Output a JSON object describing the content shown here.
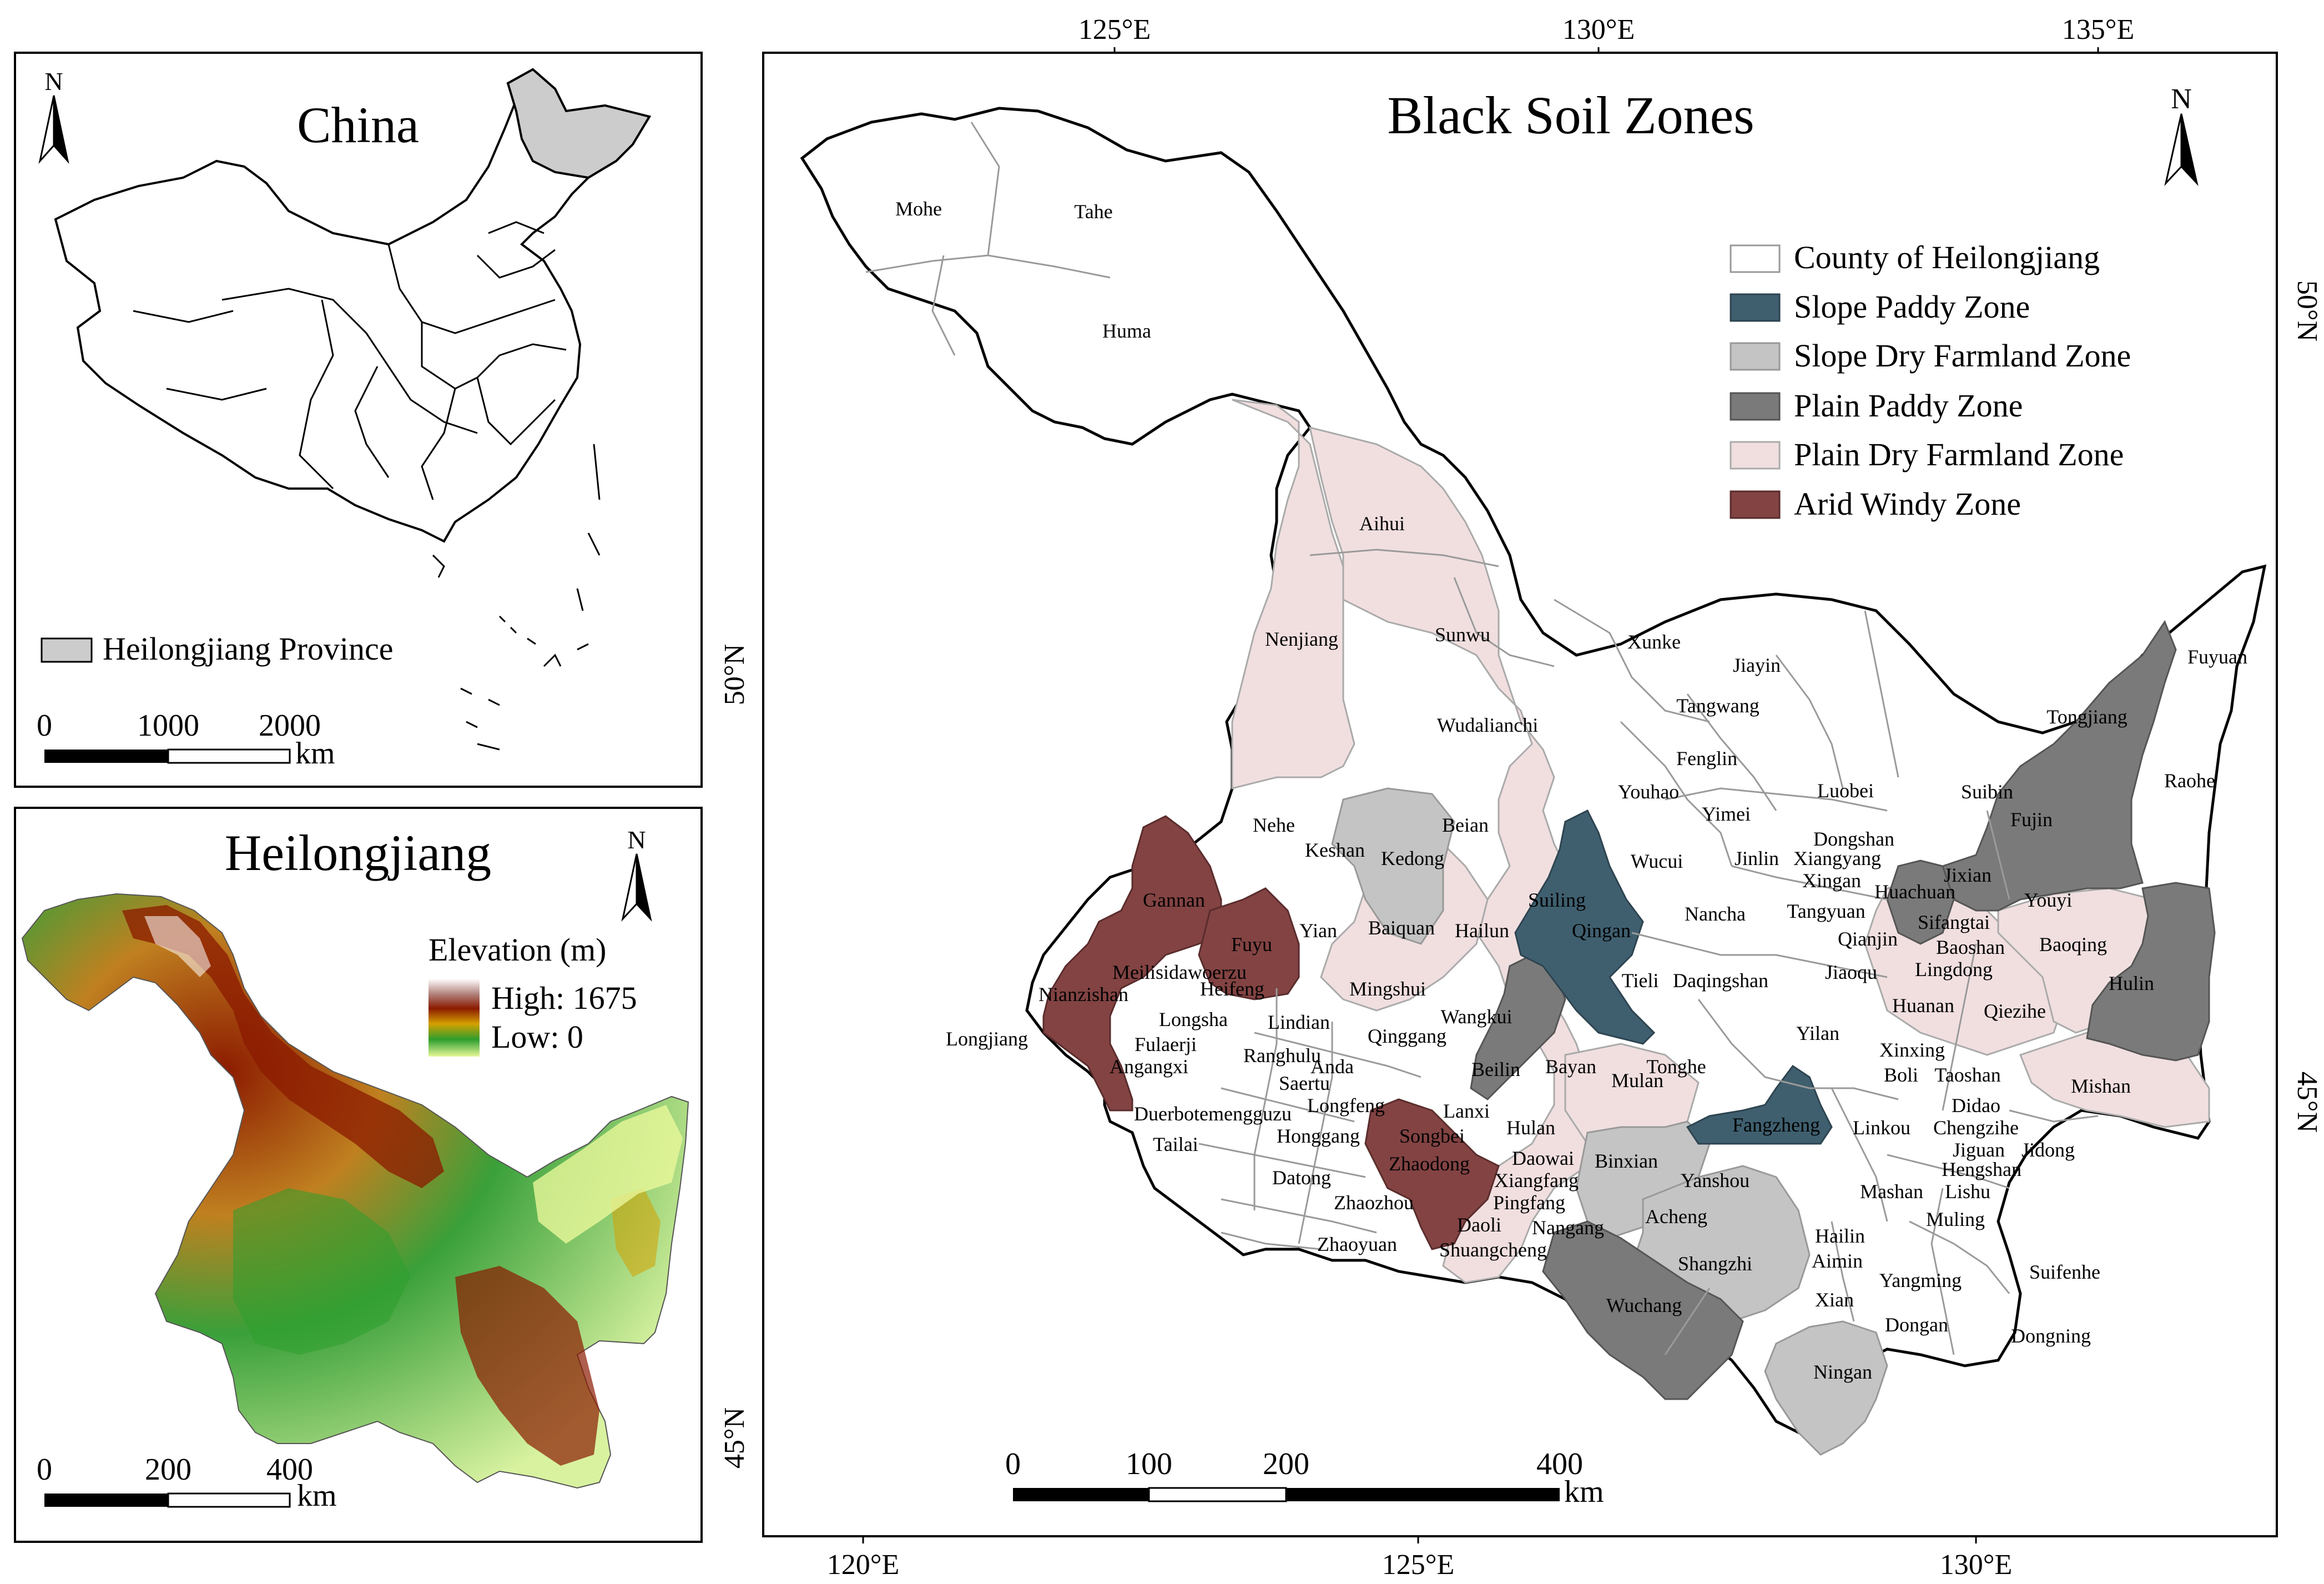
{
  "china_panel": {
    "title": "China",
    "north": "N",
    "legend_label": "Heilongjiang Province",
    "scale_ticks": [
      "0",
      "1000",
      "2000"
    ],
    "scale_unit": "km",
    "highlight_color": "#cccccc"
  },
  "hlj_panel": {
    "title": "Heilongjiang",
    "north": "N",
    "legend_title": "Elevation (m)",
    "legend_high": "High: 1675",
    "legend_low": "Low: 0",
    "scale_ticks": [
      "0",
      "200",
      "400"
    ],
    "scale_unit": "km",
    "elevation_colors": [
      "#ffffff",
      "#8b1a00",
      "#d4a000",
      "#2e9e2e",
      "#e8f89a"
    ]
  },
  "main_panel": {
    "title": "Black Soil Zones",
    "north": "N",
    "top_ticks": [
      "125°E",
      "130°E",
      "135°E"
    ],
    "bottom_ticks": [
      "120°E",
      "125°E",
      "130°E"
    ],
    "left_ticks": [
      "50°N",
      "45°N"
    ],
    "right_ticks": [
      "50°N",
      "45°N"
    ],
    "scale_ticks": [
      "0",
      "100",
      "200",
      "400"
    ],
    "scale_unit": "km",
    "legend": [
      {
        "label": "County of Heilongjiang",
        "color": "#ffffff"
      },
      {
        "label": "Slope Paddy Zone",
        "color": "#3f5f6f"
      },
      {
        "label": "Slope Dry Farmland Zone",
        "color": "#c4c4c4"
      },
      {
        "label": "Plain Paddy Zone",
        "color": "#7a7a7a"
      },
      {
        "label": "Plain Dry Farmland Zone",
        "color": "#f1dfe0"
      },
      {
        "label": "Arid Windy Zone",
        "color": "#834343"
      }
    ],
    "counties": [
      "Mohe",
      "Tahe",
      "Huma",
      "Aihui",
      "Sunwu",
      "Xunke",
      "Jiayin",
      "Nenjiang",
      "Tangwang",
      "Wudalianchi",
      "Fenglin",
      "Luobei",
      "Fuyuan",
      "Tongjiang",
      "Raohe",
      "Youhao",
      "Yimei",
      "Suibin",
      "Dongshan",
      "Fujin",
      "Nehe",
      "Beian",
      "Jinlin",
      "Xiangyang",
      "Keshan",
      "Kedong",
      "Wucui",
      "Xingan",
      "Huachuan",
      "Jixian",
      "Gannan",
      "Suiling",
      "Tangyuan",
      "Youyi",
      "Nancha",
      "Sifangtai",
      "Qianjin",
      "Baoshan",
      "Baoqing",
      "Fuyu",
      "Yian",
      "Baiquan",
      "Hailun",
      "Qingan",
      "Jiaoqu",
      "Lingdong",
      "Meilisidawoerzu",
      "Heifeng",
      "Tieli",
      "Daqingshan",
      "Hulin",
      "Nianzishan",
      "Mingshui",
      "Huanan",
      "Qiezihe",
      "Longsha",
      "Wangkui",
      "Lindian",
      "Qinggang",
      "Yilan",
      "Longjiang",
      "Fulaerji",
      "Ranghulu",
      "Beilin",
      "Bayan",
      "Tonghe",
      "Xinxing",
      "Angangxi",
      "Anda",
      "Mulan",
      "Boli",
      "Taoshan",
      "Mishan",
      "Saertu",
      "Lanxi",
      "Didao",
      "Duerbotemengguzu",
      "Longfeng",
      "Fangzheng",
      "Linkou",
      "Chengzihe",
      "Songbei",
      "Hulan",
      "Jiguan",
      "Jidong",
      "Tailai",
      "Honggang",
      "Daowai",
      "Binxian",
      "Hengshan",
      "Zhaodong",
      "Xiangfang",
      "Yanshou",
      "Mashan",
      "Lishu",
      "Datong",
      "Pingfang",
      "Muling",
      "Zhaozhou",
      "Acheng",
      "Hailin",
      "Daoli",
      "Nangang",
      "Shuangcheng",
      "Aimin",
      "Zhaoyuan",
      "Shangzhi",
      "Suifenhe",
      "Yangming",
      "Xian",
      "Wuchang",
      "Dongan",
      "Dongning",
      "Ningan"
    ]
  }
}
